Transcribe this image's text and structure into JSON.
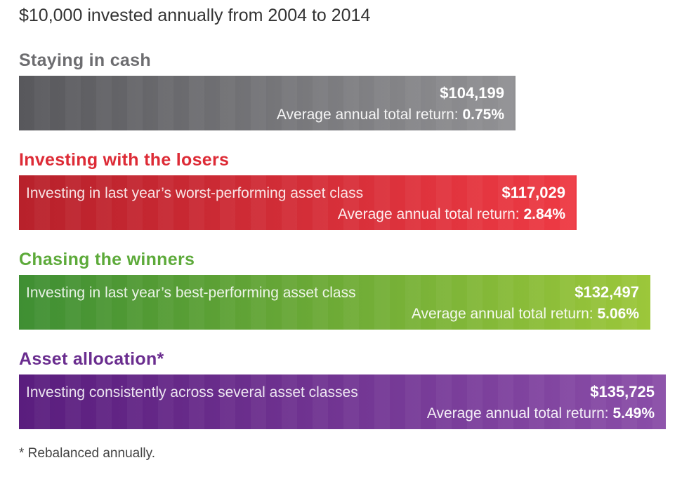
{
  "title": "$10,000 invested annually from 2004 to 2014",
  "footnote": "* Rebalanced annually.",
  "colors": {
    "cash": "#6b6b6f",
    "losers": "#d52b35",
    "winners": "#6cad2e",
    "allocation": "#6a2d8f"
  },
  "chart_data": {
    "type": "bar",
    "title": "$10,000 invested annually from 2004 to 2014",
    "orientation": "horizontal",
    "grid": false,
    "categories": [
      "Staying in cash",
      "Investing with the losers",
      "Chasing the winners",
      "Asset allocation*"
    ],
    "values": [
      104199,
      117029,
      132497,
      135725
    ],
    "items": [
      {
        "heading": "Staying in cash",
        "description": "",
        "value": 104199,
        "value_label": "$104,199",
        "return_prefix": "Average annual total return:",
        "return_value": "0.75%"
      },
      {
        "heading": "Investing with the losers",
        "description": "Investing in last year’s worst-performing asset class",
        "value": 117029,
        "value_label": "$117,029",
        "return_prefix": "Average annual total return:",
        "return_value": "2.84%"
      },
      {
        "heading": "Chasing the winners",
        "description": "Investing in last year’s best-performing asset class",
        "value": 132497,
        "value_label": "$132,497",
        "return_prefix": "Average annual total return:",
        "return_value": "5.06%"
      },
      {
        "heading": "Asset allocation*",
        "description": "Investing consistently across several asset classes",
        "value": 135725,
        "value_label": "$135,725",
        "return_prefix": "Average annual total return:",
        "return_value": "5.49%"
      }
    ]
  }
}
